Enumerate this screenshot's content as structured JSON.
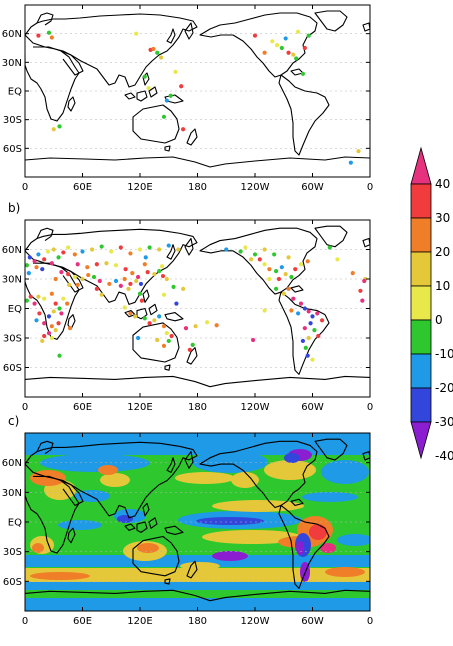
{
  "chart_data": [
    {
      "type": "scatter",
      "panel_label": "",
      "x_ticks": [
        "0",
        "60E",
        "120E",
        "180",
        "120W",
        "60W",
        "0"
      ],
      "y_ticks": [
        "60N",
        "30N",
        "EQ",
        "30S",
        "60S"
      ],
      "xlim": [
        0,
        360
      ],
      "ylim": [
        -90,
        90
      ],
      "points": [
        {
          "lon": 14,
          "lat": 58,
          "v": 25
        },
        {
          "lon": 25,
          "lat": 61,
          "v": -15
        },
        {
          "lon": 28,
          "lat": 56,
          "v": 10
        },
        {
          "lon": 116,
          "lat": 60,
          "v": -5
        },
        {
          "lon": 131,
          "lat": 43,
          "v": 25
        },
        {
          "lon": 134,
          "lat": 44,
          "v": 10
        },
        {
          "lon": 138,
          "lat": 40,
          "v": -15
        },
        {
          "lon": 142,
          "lat": 35,
          "v": 5
        },
        {
          "lon": 157,
          "lat": 20,
          "v": -5
        },
        {
          "lon": 163,
          "lat": 5,
          "v": 25
        },
        {
          "lon": 152,
          "lat": -5,
          "v": -15
        },
        {
          "lon": 148,
          "lat": -10,
          "v": -25
        },
        {
          "lon": 125,
          "lat": 15,
          "v": -15
        },
        {
          "lon": 129,
          "lat": 3,
          "v": -5
        },
        {
          "lon": 145,
          "lat": -27,
          "v": -15
        },
        {
          "lon": 165,
          "lat": -40,
          "v": 25
        },
        {
          "lon": 36,
          "lat": -37,
          "v": -15
        },
        {
          "lon": 30,
          "lat": -40,
          "v": 5
        },
        {
          "lon": 258,
          "lat": 52,
          "v": -5
        },
        {
          "lon": 263,
          "lat": 48,
          "v": -5
        },
        {
          "lon": 268,
          "lat": 45,
          "v": -15
        },
        {
          "lon": 272,
          "lat": 55,
          "v": -25
        },
        {
          "lon": 275,
          "lat": 40,
          "v": 25
        },
        {
          "lon": 280,
          "lat": 38,
          "v": 5
        },
        {
          "lon": 283,
          "lat": 34,
          "v": -15
        },
        {
          "lon": 292,
          "lat": 45,
          "v": 25
        },
        {
          "lon": 285,
          "lat": 62,
          "v": -5
        },
        {
          "lon": 296,
          "lat": 58,
          "v": -15
        },
        {
          "lon": 250,
          "lat": 40,
          "v": 15
        },
        {
          "lon": 240,
          "lat": 58,
          "v": 25
        },
        {
          "lon": 348,
          "lat": -63,
          "v": 5
        },
        {
          "lon": 340,
          "lat": -75,
          "v": -25
        },
        {
          "lon": 290,
          "lat": 18,
          "v": -15
        }
      ]
    },
    {
      "type": "scatter",
      "panel_label": "b)",
      "x_ticks": [
        "0",
        "60E",
        "120E",
        "180",
        "120W",
        "60W",
        "0"
      ],
      "y_ticks": [
        "60N",
        "30N",
        "EQ",
        "30S",
        "60S"
      ],
      "xlim": [
        0,
        360
      ],
      "ylim": [
        -90,
        90
      ],
      "points": [
        {
          "lon": 5,
          "lat": 52,
          "v": -35
        },
        {
          "lon": 10,
          "lat": 48,
          "v": 35
        },
        {
          "lon": 14,
          "lat": 55,
          "v": -25
        },
        {
          "lon": 2,
          "lat": 44,
          "v": -15
        },
        {
          "lon": 20,
          "lat": 50,
          "v": 25
        },
        {
          "lon": 24,
          "lat": 58,
          "v": -5
        },
        {
          "lon": 30,
          "lat": 60,
          "v": 5
        },
        {
          "lon": 12,
          "lat": 42,
          "v": 15
        },
        {
          "lon": 18,
          "lat": 40,
          "v": -35
        },
        {
          "lon": 28,
          "lat": 46,
          "v": 35
        },
        {
          "lon": 35,
          "lat": 52,
          "v": -15
        },
        {
          "lon": 40,
          "lat": 57,
          "v": 25
        },
        {
          "lon": 45,
          "lat": 62,
          "v": -5
        },
        {
          "lon": 52,
          "lat": 55,
          "v": 15
        },
        {
          "lon": 60,
          "lat": 58,
          "v": -25
        },
        {
          "lon": 70,
          "lat": 60,
          "v": 5
        },
        {
          "lon": 80,
          "lat": 63,
          "v": -15
        },
        {
          "lon": 90,
          "lat": 58,
          "v": -5
        },
        {
          "lon": 100,
          "lat": 62,
          "v": 25
        },
        {
          "lon": 110,
          "lat": 56,
          "v": 15
        },
        {
          "lon": 120,
          "lat": 60,
          "v": -5
        },
        {
          "lon": 130,
          "lat": 62,
          "v": -15
        },
        {
          "lon": 140,
          "lat": 60,
          "v": 5
        },
        {
          "lon": 150,
          "lat": 64,
          "v": -25
        },
        {
          "lon": 160,
          "lat": 60,
          "v": 5
        },
        {
          "lon": 55,
          "lat": 45,
          "v": 35
        },
        {
          "lon": 65,
          "lat": 42,
          "v": 15
        },
        {
          "lon": 75,
          "lat": 45,
          "v": 25
        },
        {
          "lon": 85,
          "lat": 46,
          "v": 5
        },
        {
          "lon": 95,
          "lat": 44,
          "v": -5
        },
        {
          "lon": 105,
          "lat": 40,
          "v": 25
        },
        {
          "lon": 112,
          "lat": 36,
          "v": 15
        },
        {
          "lon": 118,
          "lat": 32,
          "v": 35
        },
        {
          "lon": 116,
          "lat": 28,
          "v": 5
        },
        {
          "lon": 121,
          "lat": 25,
          "v": -35
        },
        {
          "lon": 110,
          "lat": 25,
          "v": 25
        },
        {
          "lon": 104,
          "lat": 30,
          "v": 15
        },
        {
          "lon": 100,
          "lat": 23,
          "v": 35
        },
        {
          "lon": 108,
          "lat": 20,
          "v": 5
        },
        {
          "lon": 95,
          "lat": 28,
          "v": -25
        },
        {
          "lon": 88,
          "lat": 25,
          "v": 15
        },
        {
          "lon": 78,
          "lat": 28,
          "v": 35
        },
        {
          "lon": 75,
          "lat": 20,
          "v": 25
        },
        {
          "lon": 80,
          "lat": 14,
          "v": 5
        },
        {
          "lon": 72,
          "lat": 32,
          "v": -15
        },
        {
          "lon": 66,
          "lat": 34,
          "v": 15
        },
        {
          "lon": 60,
          "lat": 30,
          "v": 5
        },
        {
          "lon": 52,
          "lat": 32,
          "v": -5
        },
        {
          "lon": 45,
          "lat": 35,
          "v": 25
        },
        {
          "lon": 38,
          "lat": 37,
          "v": 35
        },
        {
          "lon": 32,
          "lat": 30,
          "v": 15
        },
        {
          "lon": 46,
          "lat": 24,
          "v": 5
        },
        {
          "lon": 55,
          "lat": 24,
          "v": 15
        },
        {
          "lon": 128,
          "lat": 37,
          "v": 25
        },
        {
          "lon": 135,
          "lat": 35,
          "v": 5
        },
        {
          "lon": 140,
          "lat": 38,
          "v": -15
        },
        {
          "lon": 143,
          "lat": 43,
          "v": -5
        },
        {
          "lon": 125,
          "lat": 45,
          "v": 15
        },
        {
          "lon": 126,
          "lat": 52,
          "v": -25
        },
        {
          "lon": 144,
          "lat": 33,
          "v": 25
        },
        {
          "lon": 148,
          "lat": 30,
          "v": 5
        },
        {
          "lon": 155,
          "lat": 22,
          "v": -15
        },
        {
          "lon": 165,
          "lat": 20,
          "v": 5
        },
        {
          "lon": 145,
          "lat": 14,
          "v": -5
        },
        {
          "lon": 120,
          "lat": 15,
          "v": -15
        },
        {
          "lon": 122,
          "lat": 8,
          "v": 25
        },
        {
          "lon": 104,
          "lat": 1,
          "v": -5
        },
        {
          "lon": 110,
          "lat": -5,
          "v": 15
        },
        {
          "lon": 115,
          "lat": -8,
          "v": 5
        },
        {
          "lon": 125,
          "lat": -10,
          "v": -15
        },
        {
          "lon": 130,
          "lat": -15,
          "v": 25
        },
        {
          "lon": 135,
          "lat": -12,
          "v": 5
        },
        {
          "lon": 140,
          "lat": -8,
          "v": -25
        },
        {
          "lon": 145,
          "lat": -18,
          "v": 15
        },
        {
          "lon": 148,
          "lat": -25,
          "v": -5
        },
        {
          "lon": 153,
          "lat": -28,
          "v": 25
        },
        {
          "lon": 150,
          "lat": -33,
          "v": -15
        },
        {
          "lon": 138,
          "lat": -32,
          "v": 5
        },
        {
          "lon": 118,
          "lat": -30,
          "v": -25
        },
        {
          "lon": 145,
          "lat": -38,
          "v": 15
        },
        {
          "lon": 172,
          "lat": -42,
          "v": 25
        },
        {
          "lon": 175,
          "lat": -37,
          "v": -15
        },
        {
          "lon": 168,
          "lat": -20,
          "v": 35
        },
        {
          "lon": 178,
          "lat": -18,
          "v": 5
        },
        {
          "lon": 190,
          "lat": -14,
          "v": -5
        },
        {
          "lon": 200,
          "lat": -17,
          "v": 15
        },
        {
          "lon": 158,
          "lat": 5,
          "v": -35
        },
        {
          "lon": 4,
          "lat": 36,
          "v": -25
        },
        {
          "lon": -5,
          "lat": 30,
          "v": 5
        },
        {
          "lon": 6,
          "lat": 12,
          "v": 25
        },
        {
          "lon": 2,
          "lat": 8,
          "v": -15
        },
        {
          "lon": 10,
          "lat": 5,
          "v": 35
        },
        {
          "lon": 14,
          "lat": 12,
          "v": 5
        },
        {
          "lon": 20,
          "lat": 10,
          "v": -5
        },
        {
          "lon": 28,
          "lat": 15,
          "v": 15
        },
        {
          "lon": 32,
          "lat": 5,
          "v": 25
        },
        {
          "lon": 36,
          "lat": 0,
          "v": -15
        },
        {
          "lon": 38,
          "lat": -5,
          "v": 35
        },
        {
          "lon": 30,
          "lat": -3,
          "v": 5
        },
        {
          "lon": 25,
          "lat": -8,
          "v": -35
        },
        {
          "lon": 15,
          "lat": -5,
          "v": 25
        },
        {
          "lon": 12,
          "lat": -12,
          "v": -25
        },
        {
          "lon": 20,
          "lat": -15,
          "v": 35
        },
        {
          "lon": 28,
          "lat": -18,
          "v": 15
        },
        {
          "lon": 32,
          "lat": -22,
          "v": 5
        },
        {
          "lon": 25,
          "lat": -25,
          "v": 35
        },
        {
          "lon": 20,
          "lat": -28,
          "v": 25
        },
        {
          "lon": 18,
          "lat": -33,
          "v": 5
        },
        {
          "lon": 28,
          "lat": -30,
          "v": -5
        },
        {
          "lon": 47,
          "lat": -20,
          "v": 15
        },
        {
          "lon": 35,
          "lat": -15,
          "v": 25
        },
        {
          "lon": 40,
          "lat": 10,
          "v": -5
        },
        {
          "lon": 44,
          "lat": 5,
          "v": 15
        },
        {
          "lon": 36,
          "lat": -48,
          "v": -15
        },
        {
          "lon": 210,
          "lat": 60,
          "v": -25
        },
        {
          "lon": 225,
          "lat": 58,
          "v": -15
        },
        {
          "lon": 236,
          "lat": 50,
          "v": 5
        },
        {
          "lon": 240,
          "lat": 55,
          "v": -15
        },
        {
          "lon": 245,
          "lat": 50,
          "v": 25
        },
        {
          "lon": 250,
          "lat": 45,
          "v": -5
        },
        {
          "lon": 255,
          "lat": 40,
          "v": 15
        },
        {
          "lon": 262,
          "lat": 38,
          "v": -15
        },
        {
          "lon": 268,
          "lat": 42,
          "v": -25
        },
        {
          "lon": 272,
          "lat": 35,
          "v": 5
        },
        {
          "lon": 278,
          "lat": 32,
          "v": -15
        },
        {
          "lon": 282,
          "lat": 40,
          "v": 25
        },
        {
          "lon": 288,
          "lat": 45,
          "v": -5
        },
        {
          "lon": 295,
          "lat": 48,
          "v": 15
        },
        {
          "lon": 260,
          "lat": 55,
          "v": -15
        },
        {
          "lon": 275,
          "lat": 52,
          "v": 5
        },
        {
          "lon": 265,
          "lat": 30,
          "v": 25
        },
        {
          "lon": 255,
          "lat": 30,
          "v": -5
        },
        {
          "lon": 250,
          "lat": 60,
          "v": 5
        },
        {
          "lon": 230,
          "lat": 62,
          "v": -5
        },
        {
          "lon": 318,
          "lat": 62,
          "v": -15
        },
        {
          "lon": 326,
          "lat": 50,
          "v": -5
        },
        {
          "lon": 342,
          "lat": 36,
          "v": 15
        },
        {
          "lon": 354,
          "lat": 28,
          "v": 35
        },
        {
          "lon": 350,
          "lat": 18,
          "v": 25
        },
        {
          "lon": 352,
          "lat": 8,
          "v": 35
        },
        {
          "lon": 280,
          "lat": 10,
          "v": 35
        },
        {
          "lon": 288,
          "lat": 5,
          "v": 35
        },
        {
          "lon": 292,
          "lat": 0,
          "v": -35
        },
        {
          "lon": 296,
          "lat": -3,
          "v": 35
        },
        {
          "lon": 300,
          "lat": -8,
          "v": -35
        },
        {
          "lon": 305,
          "lat": -5,
          "v": 35
        },
        {
          "lon": 310,
          "lat": -12,
          "v": 25
        },
        {
          "lon": 298,
          "lat": -15,
          "v": -35
        },
        {
          "lon": 292,
          "lat": -20,
          "v": 35
        },
        {
          "lon": 302,
          "lat": -22,
          "v": -15
        },
        {
          "lon": 306,
          "lat": -28,
          "v": 25
        },
        {
          "lon": 296,
          "lat": -30,
          "v": 5
        },
        {
          "lon": 290,
          "lat": -33,
          "v": -35
        },
        {
          "lon": 293,
          "lat": -40,
          "v": -15
        },
        {
          "lon": 295,
          "lat": -48,
          "v": -35
        },
        {
          "lon": 300,
          "lat": -52,
          "v": -5
        },
        {
          "lon": 285,
          "lat": -5,
          "v": -25
        },
        {
          "lon": 278,
          "lat": -2,
          "v": 15
        },
        {
          "lon": 270,
          "lat": 15,
          "v": 5
        },
        {
          "lon": 262,
          "lat": 20,
          "v": -15
        },
        {
          "lon": 275,
          "lat": 20,
          "v": 15
        },
        {
          "lon": 238,
          "lat": -32,
          "v": 35
        },
        {
          "lon": 250,
          "lat": -2,
          "v": -5
        }
      ]
    },
    {
      "type": "heatmap",
      "panel_label": "c)",
      "x_ticks": [
        "0",
        "60E",
        "120E",
        "180",
        "120W",
        "60W",
        "0"
      ],
      "y_ticks": [
        "60N",
        "30N",
        "EQ",
        "30S",
        "60S"
      ],
      "xlim": [
        0,
        360
      ],
      "ylim": [
        -90,
        90
      ]
    }
  ],
  "colorbar": {
    "levels": [
      "40",
      "30",
      "20",
      "10",
      "0",
      "-10",
      "-20",
      "-30",
      "-40"
    ],
    "bins": [
      {
        "range": [
          30,
          40
        ],
        "color": "#e6317f"
      },
      {
        "range": [
          20,
          30
        ],
        "color": "#f03c3c"
      },
      {
        "range": [
          10,
          20
        ],
        "color": "#f07d28"
      },
      {
        "range": [
          0,
          10
        ],
        "color": "#e4c83a"
      },
      {
        "range": [
          -10,
          0
        ],
        "color": "#e8e84a"
      },
      {
        "range": [
          -20,
          -10
        ],
        "color": "#2ec82e"
      },
      {
        "range": [
          -30,
          -20
        ],
        "color": "#1e9ae6"
      },
      {
        "range": [
          -40,
          -30
        ],
        "color": "#3246dc"
      },
      {
        "range": [
          -50,
          -40
        ],
        "color": "#8c1ed2"
      }
    ]
  }
}
